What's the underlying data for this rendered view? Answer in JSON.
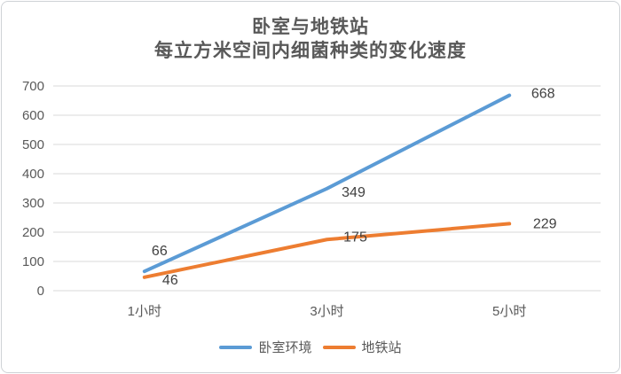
{
  "title": {
    "line1": "卧室与地铁站",
    "line2": "每立方米空间内细菌种类的变化速度"
  },
  "chart_data": {
    "type": "line",
    "categories": [
      "1小时",
      "3小时",
      "5小时"
    ],
    "series": [
      {
        "id": "bedroom",
        "name": "卧室环境",
        "values": [
          66,
          349,
          668
        ],
        "color": "#5B9BD5",
        "label_offsets": [
          [
            17,
            -23
          ],
          [
            30,
            4
          ],
          [
            38,
            -2
          ]
        ]
      },
      {
        "id": "subway-station",
        "name": "地铁站",
        "values": [
          46,
          175,
          229
        ],
        "color": "#ED7D31",
        "label_offsets": [
          [
            29,
            3
          ],
          [
            32,
            -3
          ],
          [
            40,
            0
          ]
        ]
      }
    ],
    "title": "卧室与地铁站 每立方米空间内细菌种类的变化速度",
    "xlabel": "",
    "ylabel": "",
    "ylim": [
      0,
      700
    ],
    "yticks": [
      0,
      100,
      200,
      300,
      400,
      500,
      600,
      700
    ],
    "grid": true,
    "legend_position": "bottom"
  },
  "colors": {
    "gridline": "#D9D9D9",
    "axis_text": "#595959",
    "data_label": "#404040",
    "title_text": "#595959",
    "series_blue": "#5B9BD5",
    "series_orange": "#ED7D31"
  }
}
